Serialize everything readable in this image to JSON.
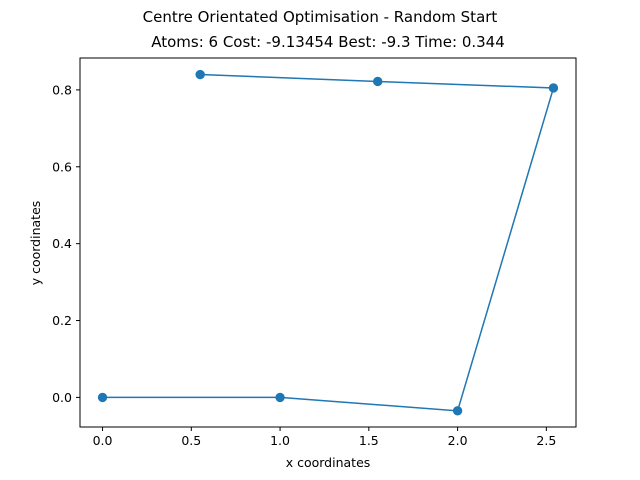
{
  "chart_data": {
    "type": "line",
    "title": "Centre Orientated Optimisation - Random Start",
    "subtitle": "Atoms: 6 Cost: -9.13454 Best: -9.3 Time: 0.344",
    "xlabel": "x coordinates",
    "ylabel": "y coordinates",
    "xlim": [
      -0.127,
      2.667
    ],
    "ylim": [
      -0.077,
      0.883
    ],
    "x_ticks": [
      0.0,
      0.5,
      1.0,
      1.5,
      2.0,
      2.5
    ],
    "x_tick_labels": [
      "0.0",
      "0.5",
      "1.0",
      "1.5",
      "2.0",
      "2.5"
    ],
    "y_ticks": [
      0.0,
      0.2,
      0.4,
      0.6,
      0.8
    ],
    "y_tick_labels": [
      "0.0",
      "0.2",
      "0.4",
      "0.6",
      "0.8"
    ],
    "grid": false,
    "series": [
      {
        "color": "#1f77b4",
        "marker": "circle",
        "x": [
          0.0,
          1.0,
          2.0,
          2.54,
          1.55,
          0.55
        ],
        "y": [
          0.0,
          0.0,
          -0.035,
          0.805,
          0.822,
          0.84
        ]
      }
    ]
  }
}
